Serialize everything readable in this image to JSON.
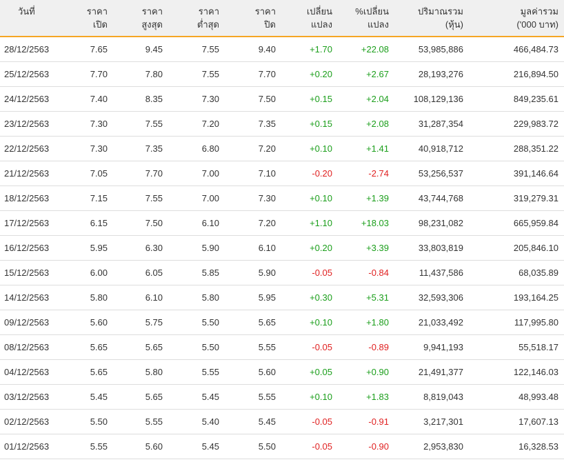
{
  "headers": [
    {
      "l1": "วันที่",
      "l2": ""
    },
    {
      "l1": "ราคา",
      "l2": "เปิด"
    },
    {
      "l1": "ราคา",
      "l2": "สูงสุด"
    },
    {
      "l1": "ราคา",
      "l2": "ต่ำสุด"
    },
    {
      "l1": "ราคา",
      "l2": "ปิด"
    },
    {
      "l1": "เปลี่ยน",
      "l2": "แปลง"
    },
    {
      "l1": "%เปลี่ยน",
      "l2": "แปลง"
    },
    {
      "l1": "ปริมาณรวม",
      "l2": "(หุ้น)"
    },
    {
      "l1": "มูลค่ารวม",
      "l2": "('000 บาท)"
    }
  ],
  "colors": {
    "up": "#1a9e1a",
    "down": "#e02020",
    "header_border": "#f5a623"
  },
  "rows": [
    {
      "date": "28/12/2563",
      "open": "7.65",
      "high": "9.45",
      "low": "7.55",
      "close": "9.40",
      "change": "+1.70",
      "pct_change": "+22.08",
      "volume": "53,985,886",
      "value": "466,484.73",
      "direction": "up"
    },
    {
      "date": "25/12/2563",
      "open": "7.70",
      "high": "7.80",
      "low": "7.55",
      "close": "7.70",
      "change": "+0.20",
      "pct_change": "+2.67",
      "volume": "28,193,276",
      "value": "216,894.50",
      "direction": "up"
    },
    {
      "date": "24/12/2563",
      "open": "7.40",
      "high": "8.35",
      "low": "7.30",
      "close": "7.50",
      "change": "+0.15",
      "pct_change": "+2.04",
      "volume": "108,129,136",
      "value": "849,235.61",
      "direction": "up"
    },
    {
      "date": "23/12/2563",
      "open": "7.30",
      "high": "7.55",
      "low": "7.20",
      "close": "7.35",
      "change": "+0.15",
      "pct_change": "+2.08",
      "volume": "31,287,354",
      "value": "229,983.72",
      "direction": "up"
    },
    {
      "date": "22/12/2563",
      "open": "7.30",
      "high": "7.35",
      "low": "6.80",
      "close": "7.20",
      "change": "+0.10",
      "pct_change": "+1.41",
      "volume": "40,918,712",
      "value": "288,351.22",
      "direction": "up"
    },
    {
      "date": "21/12/2563",
      "open": "7.05",
      "high": "7.70",
      "low": "7.00",
      "close": "7.10",
      "change": "-0.20",
      "pct_change": "-2.74",
      "volume": "53,256,537",
      "value": "391,146.64",
      "direction": "down"
    },
    {
      "date": "18/12/2563",
      "open": "7.15",
      "high": "7.55",
      "low": "7.00",
      "close": "7.30",
      "change": "+0.10",
      "pct_change": "+1.39",
      "volume": "43,744,768",
      "value": "319,279.31",
      "direction": "up"
    },
    {
      "date": "17/12/2563",
      "open": "6.15",
      "high": "7.50",
      "low": "6.10",
      "close": "7.20",
      "change": "+1.10",
      "pct_change": "+18.03",
      "volume": "98,231,082",
      "value": "665,959.84",
      "direction": "up"
    },
    {
      "date": "16/12/2563",
      "open": "5.95",
      "high": "6.30",
      "low": "5.90",
      "close": "6.10",
      "change": "+0.20",
      "pct_change": "+3.39",
      "volume": "33,803,819",
      "value": "205,846.10",
      "direction": "up"
    },
    {
      "date": "15/12/2563",
      "open": "6.00",
      "high": "6.05",
      "low": "5.85",
      "close": "5.90",
      "change": "-0.05",
      "pct_change": "-0.84",
      "volume": "11,437,586",
      "value": "68,035.89",
      "direction": "down"
    },
    {
      "date": "14/12/2563",
      "open": "5.80",
      "high": "6.10",
      "low": "5.80",
      "close": "5.95",
      "change": "+0.30",
      "pct_change": "+5.31",
      "volume": "32,593,306",
      "value": "193,164.25",
      "direction": "up"
    },
    {
      "date": "09/12/2563",
      "open": "5.60",
      "high": "5.75",
      "low": "5.50",
      "close": "5.65",
      "change": "+0.10",
      "pct_change": "+1.80",
      "volume": "21,033,492",
      "value": "117,995.80",
      "direction": "up"
    },
    {
      "date": "08/12/2563",
      "open": "5.65",
      "high": "5.65",
      "low": "5.50",
      "close": "5.55",
      "change": "-0.05",
      "pct_change": "-0.89",
      "volume": "9,941,193",
      "value": "55,518.17",
      "direction": "down"
    },
    {
      "date": "04/12/2563",
      "open": "5.65",
      "high": "5.80",
      "low": "5.55",
      "close": "5.60",
      "change": "+0.05",
      "pct_change": "+0.90",
      "volume": "21,491,377",
      "value": "122,146.03",
      "direction": "up"
    },
    {
      "date": "03/12/2563",
      "open": "5.45",
      "high": "5.65",
      "low": "5.45",
      "close": "5.55",
      "change": "+0.10",
      "pct_change": "+1.83",
      "volume": "8,819,043",
      "value": "48,993.48",
      "direction": "up"
    },
    {
      "date": "02/12/2563",
      "open": "5.50",
      "high": "5.55",
      "low": "5.40",
      "close": "5.45",
      "change": "-0.05",
      "pct_change": "-0.91",
      "volume": "3,217,301",
      "value": "17,607.13",
      "direction": "down"
    },
    {
      "date": "01/12/2563",
      "open": "5.55",
      "high": "5.60",
      "low": "5.45",
      "close": "5.50",
      "change": "-0.05",
      "pct_change": "-0.90",
      "volume": "2,953,830",
      "value": "16,328.53",
      "direction": "down"
    }
  ]
}
